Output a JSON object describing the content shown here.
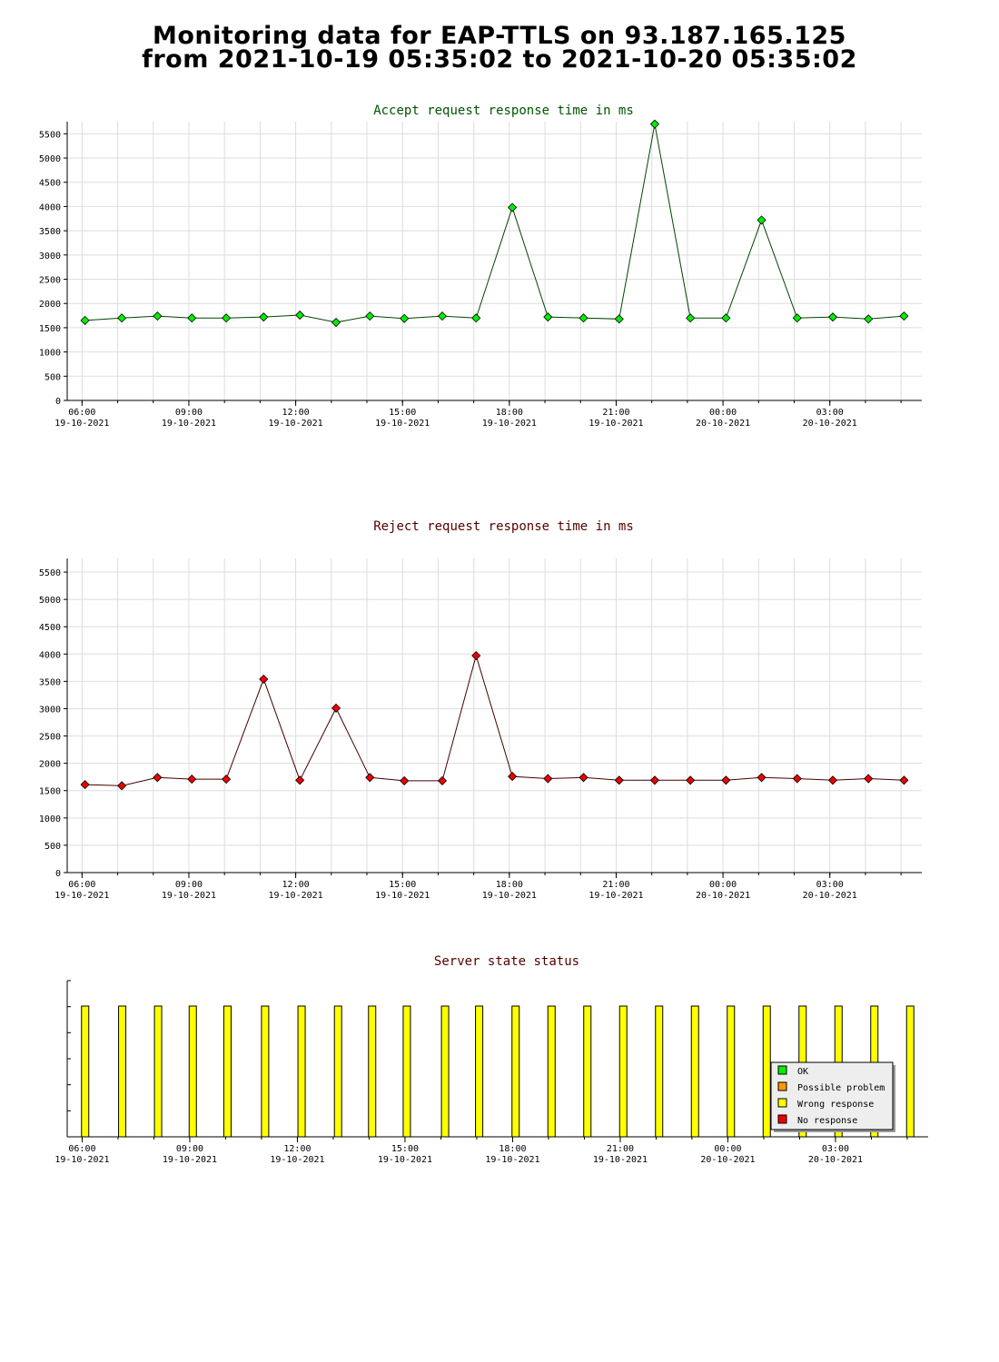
{
  "page": {
    "title_line1": "Monitoring data for EAP-TTLS on 93.187.165.125",
    "title_line2": "from 2021-10-19 05:35:02 to 2021-10-20 05:35:02"
  },
  "colors": {
    "accept_line": "#004400",
    "accept_marker": "#00ee00",
    "reject_line": "#440000",
    "reject_marker": "#ee0000",
    "accept_title": "#005500",
    "reject_title": "#550000",
    "status_title": "#550000",
    "status_bar": "#ffff00",
    "grid": "#dddddd"
  },
  "chart_data": [
    {
      "type": "line",
      "title": "Accept request response time in ms",
      "xlabel": "",
      "ylabel": "",
      "ylim": [
        0,
        5750
      ],
      "yticks": [
        0,
        500,
        1000,
        1500,
        2000,
        2500,
        3000,
        3500,
        4000,
        4500,
        5000,
        5500
      ],
      "xlim": [
        "2021-10-19 05:35",
        "2021-10-20 05:35"
      ],
      "xticks": [
        {
          "time": "06:00",
          "date": "19-10-2021"
        },
        {
          "time": "09:00",
          "date": "19-10-2021"
        },
        {
          "time": "12:00",
          "date": "19-10-2021"
        },
        {
          "time": "15:00",
          "date": "19-10-2021"
        },
        {
          "time": "18:00",
          "date": "19-10-2021"
        },
        {
          "time": "21:00",
          "date": "19-10-2021"
        },
        {
          "time": "00:00",
          "date": "20-10-2021"
        },
        {
          "time": "03:00",
          "date": "20-10-2021"
        }
      ],
      "grid": true,
      "marker": "diamond",
      "series": [
        {
          "x": [
            "2021-10-19 06:05",
            "2021-10-19 07:07",
            "2021-10-19 08:07",
            "2021-10-19 09:05",
            "2021-10-19 10:03",
            "2021-10-19 11:06",
            "2021-10-19 12:07",
            "2021-10-19 13:08",
            "2021-10-19 14:05",
            "2021-10-19 15:03",
            "2021-10-19 16:07",
            "2021-10-19 17:04",
            "2021-10-19 18:05",
            "2021-10-19 19:05",
            "2021-10-19 20:05",
            "2021-10-19 21:05",
            "2021-10-19 22:05",
            "2021-10-19 23:05",
            "2021-10-20 00:05",
            "2021-10-20 01:05",
            "2021-10-20 02:05",
            "2021-10-20 03:05",
            "2021-10-20 04:05",
            "2021-10-20 05:05"
          ],
          "values": [
            1650,
            1700,
            1740,
            1700,
            1700,
            1720,
            1760,
            1610,
            1740,
            1690,
            1740,
            1700,
            3980,
            1720,
            1700,
            1680,
            5700,
            1700,
            1700,
            3720,
            1700,
            1720,
            1680,
            1740
          ]
        }
      ]
    },
    {
      "type": "line",
      "title": "Reject request response time in ms",
      "xlabel": "",
      "ylabel": "",
      "ylim": [
        0,
        5750
      ],
      "yticks": [
        0,
        500,
        1000,
        1500,
        2000,
        2500,
        3000,
        3500,
        4000,
        4500,
        5000,
        5500
      ],
      "xlim": [
        "2021-10-19 05:35",
        "2021-10-20 05:35"
      ],
      "xticks": [
        {
          "time": "06:00",
          "date": "19-10-2021"
        },
        {
          "time": "09:00",
          "date": "19-10-2021"
        },
        {
          "time": "12:00",
          "date": "19-10-2021"
        },
        {
          "time": "15:00",
          "date": "19-10-2021"
        },
        {
          "time": "18:00",
          "date": "19-10-2021"
        },
        {
          "time": "21:00",
          "date": "19-10-2021"
        },
        {
          "time": "00:00",
          "date": "20-10-2021"
        },
        {
          "time": "03:00",
          "date": "20-10-2021"
        }
      ],
      "grid": true,
      "marker": "diamond",
      "series": [
        {
          "x": [
            "2021-10-19 06:05",
            "2021-10-19 07:07",
            "2021-10-19 08:07",
            "2021-10-19 09:05",
            "2021-10-19 10:03",
            "2021-10-19 11:06",
            "2021-10-19 12:07",
            "2021-10-19 13:08",
            "2021-10-19 14:05",
            "2021-10-19 15:03",
            "2021-10-19 16:07",
            "2021-10-19 17:04",
            "2021-10-19 18:05",
            "2021-10-19 19:05",
            "2021-10-19 20:05",
            "2021-10-19 21:05",
            "2021-10-19 22:05",
            "2021-10-19 23:05",
            "2021-10-20 00:05",
            "2021-10-20 01:05",
            "2021-10-20 02:05",
            "2021-10-20 03:05",
            "2021-10-20 04:05",
            "2021-10-20 05:05"
          ],
          "values": [
            1610,
            1590,
            1740,
            1710,
            1710,
            3540,
            1690,
            3010,
            1740,
            1680,
            1680,
            3970,
            1760,
            1720,
            1740,
            1690,
            1690,
            1690,
            1690,
            1740,
            1720,
            1690,
            1720,
            1690
          ]
        }
      ]
    },
    {
      "type": "bar",
      "title": "Server state status",
      "xlabel": "",
      "ylabel": "",
      "xlim": [
        "2021-10-19 05:35",
        "2021-10-20 05:35"
      ],
      "xticks": [
        {
          "time": "06:00",
          "date": "19-10-2021"
        },
        {
          "time": "09:00",
          "date": "19-10-2021"
        },
        {
          "time": "12:00",
          "date": "19-10-2021"
        },
        {
          "time": "15:00",
          "date": "19-10-2021"
        },
        {
          "time": "18:00",
          "date": "19-10-2021"
        },
        {
          "time": "21:00",
          "date": "19-10-2021"
        },
        {
          "time": "00:00",
          "date": "20-10-2021"
        },
        {
          "time": "03:00",
          "date": "20-10-2021"
        }
      ],
      "legend_position": "bottom-right",
      "legend": [
        {
          "label": "OK",
          "color": "#00ee00"
        },
        {
          "label": "Possible problem",
          "color": "#ff9900"
        },
        {
          "label": "Wrong response",
          "color": "#ffff00"
        },
        {
          "label": "No response",
          "color": "#ee0000"
        }
      ],
      "series": [
        {
          "x": [
            "2021-10-19 06:05",
            "2021-10-19 07:07",
            "2021-10-19 08:07",
            "2021-10-19 09:05",
            "2021-10-19 10:03",
            "2021-10-19 11:06",
            "2021-10-19 12:07",
            "2021-10-19 13:08",
            "2021-10-19 14:05",
            "2021-10-19 15:03",
            "2021-10-19 16:07",
            "2021-10-19 17:04",
            "2021-10-19 18:05",
            "2021-10-19 19:05",
            "2021-10-19 20:05",
            "2021-10-19 21:05",
            "2021-10-19 22:05",
            "2021-10-19 23:05",
            "2021-10-20 00:05",
            "2021-10-20 01:05",
            "2021-10-20 02:05",
            "2021-10-20 03:05",
            "2021-10-20 04:05",
            "2021-10-20 05:05"
          ],
          "states": [
            "Wrong response",
            "Wrong response",
            "Wrong response",
            "Wrong response",
            "Wrong response",
            "Wrong response",
            "Wrong response",
            "Wrong response",
            "Wrong response",
            "Wrong response",
            "Wrong response",
            "Wrong response",
            "Wrong response",
            "Wrong response",
            "Wrong response",
            "Wrong response",
            "Wrong response",
            "Wrong response",
            "Wrong response",
            "Wrong response",
            "Wrong response",
            "Wrong response",
            "Wrong response",
            "Wrong response"
          ]
        }
      ]
    }
  ]
}
